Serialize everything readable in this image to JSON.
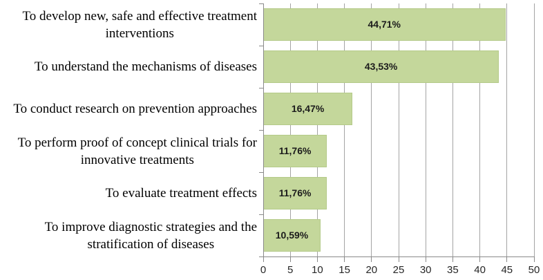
{
  "chart_data": {
    "type": "bar",
    "orientation": "horizontal",
    "title": "",
    "xlabel": "",
    "ylabel": "",
    "categories": [
      "To develop new, safe and effective treatment\ninterventions",
      "To understand the mechanisms of diseases",
      "To conduct research on prevention approaches",
      "To perform proof of concept clinical trials for\ninnovative treatments",
      "To evaluate treatment effects",
      "To improve diagnostic strategies and the\nstratification of diseases"
    ],
    "values": [
      44.71,
      43.53,
      16.47,
      11.76,
      11.76,
      10.59
    ],
    "value_labels": [
      "44,71%",
      "43,53%",
      "16,47%",
      "11,76%",
      "11,76%",
      "10,59%"
    ],
    "value_label_position": "center",
    "xlim": [
      0,
      50
    ],
    "x_ticks": [
      0,
      5,
      10,
      15,
      20,
      25,
      30,
      35,
      40,
      45,
      50
    ],
    "grid": "vertical",
    "legend": "none",
    "colors": {
      "bar_fill": "#c4d79b",
      "bar_border": "#b4ca89",
      "gridline": "#a3a3a3",
      "axis_line": "#898989",
      "category_text": "#000000",
      "value_text": "#1c1c1c",
      "tick_text": "#262626",
      "background": "#ffffff"
    }
  }
}
